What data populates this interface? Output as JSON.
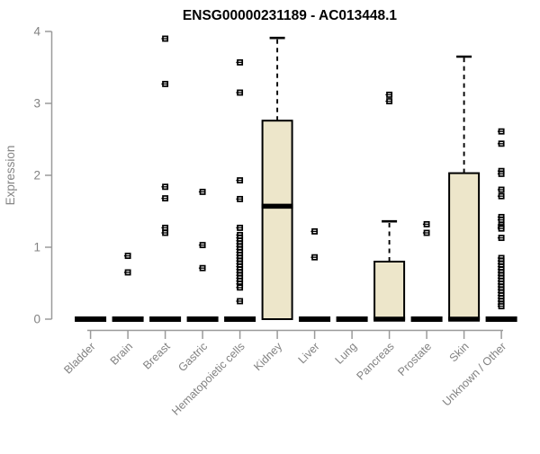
{
  "chart_data": {
    "type": "boxplot",
    "title": "ENSG00000231189 - AC013448.1",
    "xlabel": "",
    "ylabel": "Expression",
    "ylim": [
      0,
      4
    ],
    "yticks": [
      0,
      1,
      2,
      3,
      4
    ],
    "grid": false,
    "legend": "none",
    "colors": {
      "box_fill": "#ede6ca",
      "box_stroke": "#000000",
      "median": "#000000",
      "outlier": "#000000",
      "axis_line": "#9a9a9a",
      "axis_text": "#828282",
      "title_text": "#000000",
      "background": "#ffffff"
    },
    "categories": [
      "Bladder",
      "Brain",
      "Breast",
      "Gastric",
      "Hematopoietic cells",
      "Kidney",
      "Liver",
      "Lung",
      "Pancreas",
      "Prostate",
      "Skin",
      "Unknown / Other"
    ],
    "series": [
      {
        "name": "Bladder",
        "q1": 0,
        "median": 0,
        "q3": 0,
        "whisker_low": 0,
        "whisker_high": 0,
        "outliers": []
      },
      {
        "name": "Brain",
        "q1": 0,
        "median": 0,
        "q3": 0,
        "whisker_low": 0,
        "whisker_high": 0,
        "outliers": [
          0.88,
          0.65
        ]
      },
      {
        "name": "Breast",
        "q1": 0,
        "median": 0,
        "q3": 0,
        "whisker_low": 0,
        "whisker_high": 0,
        "outliers": [
          3.9,
          3.27,
          1.84,
          1.68,
          1.27,
          1.2
        ]
      },
      {
        "name": "Gastric",
        "q1": 0,
        "median": 0,
        "q3": 0,
        "whisker_low": 0,
        "whisker_high": 0,
        "outliers": [
          1.77,
          1.03,
          0.71
        ]
      },
      {
        "name": "Hematopoietic cells",
        "q1": 0,
        "median": 0,
        "q3": 0,
        "whisker_low": 0,
        "whisker_high": 0,
        "outliers": [
          3.57,
          3.15,
          1.93,
          1.67,
          1.27,
          1.17,
          1.13,
          1.09,
          1.05,
          1.01,
          0.97,
          0.93,
          0.89,
          0.85,
          0.81,
          0.77,
          0.73,
          0.69,
          0.65,
          0.61,
          0.57,
          0.53,
          0.49,
          0.44,
          0.25
        ]
      },
      {
        "name": "Kidney",
        "q1": 0,
        "median": 1.57,
        "q3": 2.76,
        "whisker_low": 0,
        "whisker_high": 3.91,
        "outliers": []
      },
      {
        "name": "Liver",
        "q1": 0,
        "median": 0,
        "q3": 0,
        "whisker_low": 0,
        "whisker_high": 0,
        "outliers": [
          1.22,
          0.86
        ]
      },
      {
        "name": "Lung",
        "q1": 0,
        "median": 0,
        "q3": 0,
        "whisker_low": 0,
        "whisker_high": 0,
        "outliers": []
      },
      {
        "name": "Pancreas",
        "q1": 0,
        "median": 0,
        "q3": 0.8,
        "whisker_low": 0,
        "whisker_high": 1.36,
        "outliers": [
          3.12,
          3.03
        ]
      },
      {
        "name": "Prostate",
        "q1": 0,
        "median": 0,
        "q3": 0,
        "whisker_low": 0,
        "whisker_high": 0,
        "outliers": [
          1.32,
          1.2
        ]
      },
      {
        "name": "Skin",
        "q1": 0,
        "median": 0,
        "q3": 2.03,
        "whisker_low": 0,
        "whisker_high": 3.65,
        "outliers": []
      },
      {
        "name": "Unknown / Other",
        "q1": 0,
        "median": 0,
        "q3": 0,
        "whisker_low": 0,
        "whisker_high": 0,
        "outliers": [
          2.61,
          2.44,
          2.06,
          2.02,
          1.8,
          1.71,
          1.42,
          1.38,
          1.31,
          1.28,
          1.26,
          1.13,
          0.85,
          0.81,
          0.77,
          0.73,
          0.69,
          0.65,
          0.61,
          0.57,
          0.53,
          0.49,
          0.45,
          0.41,
          0.37,
          0.33,
          0.29,
          0.25,
          0.21,
          0.18
        ]
      }
    ]
  }
}
